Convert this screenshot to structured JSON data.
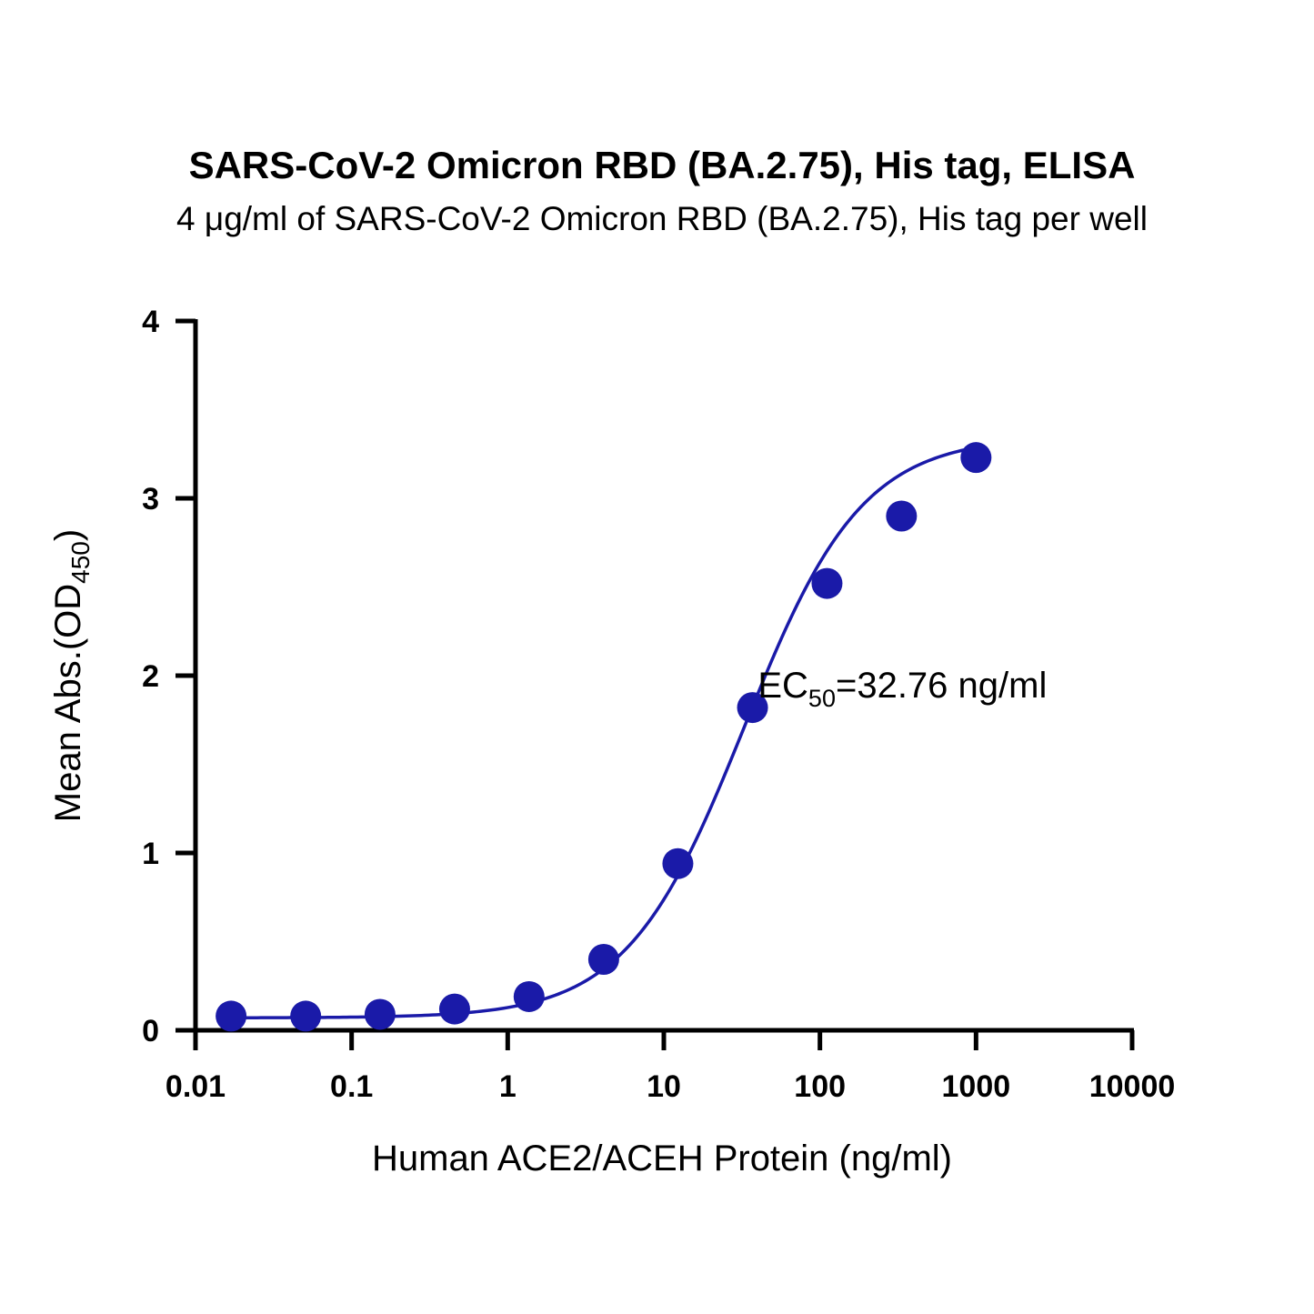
{
  "chart_data": {
    "type": "scatter",
    "title": "SARS-CoV-2 Omicron RBD (BA.2.75), His tag, ELISA",
    "subtitle": "4 μg/ml of SARS-CoV-2 Omicron RBD (BA.2.75), His tag per well",
    "xlabel": "Human ACE2/ACEH Protein (ng/ml)",
    "ylabel": {
      "main": "Mean Abs.(OD",
      "sub": "450",
      "end": ")"
    },
    "x_scale": "log",
    "xlim": [
      0.01,
      10000
    ],
    "ylim": [
      0,
      4
    ],
    "x_ticks": [
      {
        "value": 0.01,
        "label": "0.01"
      },
      {
        "value": 0.1,
        "label": "0.1"
      },
      {
        "value": 1,
        "label": "1"
      },
      {
        "value": 10,
        "label": "10"
      },
      {
        "value": 100,
        "label": "100"
      },
      {
        "value": 1000,
        "label": "1000"
      },
      {
        "value": 10000,
        "label": "10000"
      }
    ],
    "y_ticks": [
      {
        "value": 0,
        "label": "0"
      },
      {
        "value": 1,
        "label": "1"
      },
      {
        "value": 2,
        "label": "2"
      },
      {
        "value": 3,
        "label": "3"
      },
      {
        "value": 4,
        "label": "4"
      }
    ],
    "grid": false,
    "color": "#1a1aa8",
    "series": [
      {
        "x": [
          0.0169,
          0.0508,
          0.152,
          0.457,
          1.37,
          4.12,
          12.3,
          37.0,
          111,
          333,
          1000
        ],
        "y": [
          0.08,
          0.08,
          0.09,
          0.12,
          0.19,
          0.4,
          0.94,
          1.82,
          2.52,
          2.9,
          3.23
        ]
      }
    ],
    "fit": {
      "bottom": 0.07,
      "top": 3.35,
      "ec50": 32.76,
      "hill": 1.15
    },
    "annotation": {
      "prefix": "EC",
      "sub": "50",
      "suffix": "=32.76 ng/ml",
      "x": 40,
      "y": 1.95
    }
  }
}
